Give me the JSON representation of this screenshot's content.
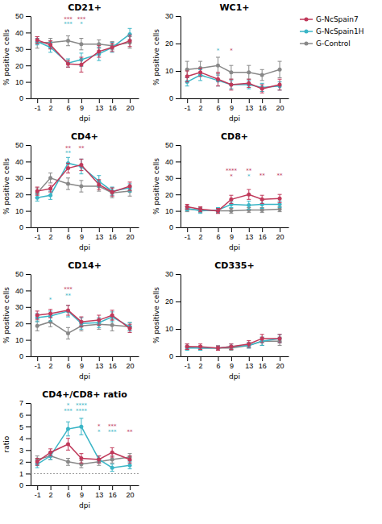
{
  "chart_data": [
    {
      "type": "line",
      "title": "CD21+",
      "x_label": "dpi",
      "y_label": "% positive cells",
      "x": [
        -1,
        2,
        6,
        9,
        13,
        16,
        20
      ],
      "xlim": [
        -2.5,
        22
      ],
      "xticks": [
        -1,
        2,
        6,
        9,
        13,
        16,
        20
      ],
      "ylim": [
        0,
        50
      ],
      "yticks": [
        0,
        10,
        20,
        30,
        40,
        50
      ],
      "series": [
        {
          "color": "#c0395a",
          "marker": "circle",
          "values": [
            35.5,
            32.5,
            21.0,
            20.5,
            28.5,
            31.0,
            35.0
          ],
          "errors": [
            2.0,
            2.5,
            2.0,
            4.5,
            3.5,
            2.5,
            3.5
          ]
        },
        {
          "color": "#3ab5c6",
          "marker": "circle",
          "values": [
            34.5,
            31.0,
            21.5,
            23.5,
            27.0,
            31.0,
            39.0
          ],
          "errors": [
            2.0,
            3.0,
            2.5,
            4.0,
            4.0,
            3.0,
            3.5
          ]
        },
        {
          "color": "#888888",
          "marker": "circle",
          "values": [
            34.0,
            34.0,
            35.0,
            33.0,
            33.0,
            32.0,
            34.0
          ],
          "errors": [
            3.5,
            2.5,
            3.0,
            3.5,
            2.5,
            2.5,
            3.5
          ]
        }
      ],
      "annotations": [
        {
          "x": 6,
          "y": 46.5,
          "text": "***",
          "color": "#c0395a"
        },
        {
          "x": 6,
          "y": 43.5,
          "text": "***",
          "color": "#3ab5c6"
        },
        {
          "x": 9,
          "y": 46.5,
          "text": "***",
          "color": "#c0395a"
        },
        {
          "x": 9,
          "y": 43.5,
          "text": "*",
          "color": "#3ab5c6"
        }
      ]
    },
    {
      "type": "line",
      "title": "WC1+",
      "x_label": "dpi",
      "y_label": "% positive cells",
      "x": [
        -1,
        2,
        6,
        9,
        13,
        16,
        20
      ],
      "xlim": [
        -2.5,
        22
      ],
      "xticks": [
        -1,
        2,
        6,
        9,
        13,
        16,
        20
      ],
      "ylim": [
        0,
        30
      ],
      "yticks": [
        0,
        10,
        20,
        30
      ],
      "legend": "right",
      "series": [
        {
          "name": "G-NcSpain7",
          "color": "#c0395a",
          "marker": "circle",
          "values": [
            8.0,
            9.5,
            7.0,
            5.0,
            5.5,
            3.5,
            5.0
          ],
          "errors": [
            2.0,
            1.5,
            2.5,
            2.0,
            1.5,
            1.5,
            2.0
          ]
        },
        {
          "name": "G-NcSpain1H",
          "color": "#3ab5c6",
          "marker": "circle",
          "values": [
            6.0,
            8.5,
            6.5,
            5.0,
            5.0,
            4.0,
            4.5
          ],
          "errors": [
            1.5,
            2.0,
            2.0,
            1.5,
            1.5,
            1.5,
            1.5
          ]
        },
        {
          "name": "G-Control",
          "color": "#888888",
          "marker": "circle",
          "values": [
            10.5,
            11.0,
            12.0,
            9.5,
            9.5,
            8.5,
            10.5
          ],
          "errors": [
            3.0,
            2.5,
            3.0,
            2.5,
            2.5,
            2.0,
            3.0
          ]
        }
      ],
      "annotations": [
        {
          "x": 6,
          "y": 16.5,
          "text": "*",
          "color": "#3ab5c6"
        },
        {
          "x": 9,
          "y": 16.5,
          "text": "*",
          "color": "#c0395a"
        }
      ]
    },
    {
      "type": "line",
      "title": "CD4+",
      "x_label": "dpi",
      "y_label": "% positive cells",
      "x": [
        -1,
        2,
        6,
        9,
        13,
        16,
        20
      ],
      "xlim": [
        -2.5,
        22
      ],
      "xticks": [
        -1,
        2,
        6,
        9,
        13,
        16,
        20
      ],
      "ylim": [
        0,
        50
      ],
      "yticks": [
        0,
        10,
        20,
        30,
        40,
        50
      ],
      "series": [
        {
          "color": "#c0395a",
          "marker": "circle",
          "values": [
            22.0,
            23.5,
            36.0,
            38.0,
            26.0,
            21.5,
            25.0
          ],
          "errors": [
            2.5,
            2.0,
            3.0,
            3.5,
            3.0,
            2.5,
            2.5
          ]
        },
        {
          "color": "#3ab5c6",
          "marker": "circle",
          "values": [
            18.0,
            19.5,
            39.0,
            37.0,
            28.0,
            22.0,
            24.0
          ],
          "errors": [
            2.0,
            2.5,
            3.5,
            4.5,
            3.5,
            2.5,
            2.5
          ]
        },
        {
          "color": "#888888",
          "marker": "circle",
          "values": [
            21.0,
            30.0,
            26.5,
            25.0,
            25.0,
            21.0,
            22.0
          ],
          "errors": [
            3.0,
            3.0,
            3.5,
            3.5,
            3.0,
            3.0,
            3.0
          ]
        }
      ],
      "annotations": [
        {
          "x": 6,
          "y": 46.5,
          "text": "**",
          "color": "#c0395a"
        },
        {
          "x": 6,
          "y": 43.5,
          "text": "**",
          "color": "#3ab5c6"
        },
        {
          "x": 9,
          "y": 46.5,
          "text": "**",
          "color": "#c0395a"
        }
      ]
    },
    {
      "type": "line",
      "title": "CD8+",
      "x_label": "dpi",
      "y_label": "% positive cells",
      "x": [
        -1,
        2,
        6,
        9,
        13,
        16,
        20
      ],
      "xlim": [
        -2.5,
        22
      ],
      "xticks": [
        -1,
        2,
        6,
        9,
        13,
        16,
        20
      ],
      "ylim": [
        0,
        50
      ],
      "yticks": [
        0,
        10,
        20,
        30,
        40,
        50
      ],
      "series": [
        {
          "color": "#c0395a",
          "marker": "circle",
          "values": [
            12.5,
            11.0,
            10.0,
            17.0,
            20.0,
            17.0,
            17.5
          ],
          "errors": [
            1.5,
            1.5,
            1.5,
            2.5,
            3.0,
            2.5,
            2.5
          ]
        },
        {
          "color": "#3ab5c6",
          "marker": "circle",
          "values": [
            11.5,
            10.0,
            10.5,
            14.0,
            13.5,
            14.0,
            14.0
          ],
          "errors": [
            1.5,
            1.5,
            1.5,
            2.0,
            2.5,
            2.5,
            2.0
          ]
        },
        {
          "color": "#888888",
          "marker": "circle",
          "values": [
            11.0,
            10.5,
            10.0,
            10.0,
            10.5,
            10.5,
            11.0
          ],
          "errors": [
            1.5,
            1.5,
            1.5,
            1.5,
            1.5,
            1.5,
            1.5
          ]
        }
      ],
      "annotations": [
        {
          "x": 9,
          "y": 33.0,
          "text": "****",
          "color": "#c0395a"
        },
        {
          "x": 9,
          "y": 29.5,
          "text": "*",
          "color": "#c0395a"
        },
        {
          "x": 13,
          "y": 33.0,
          "text": "**",
          "color": "#c0395a"
        },
        {
          "x": 13,
          "y": 29.5,
          "text": "*",
          "color": "#3ab5c6"
        },
        {
          "x": 16,
          "y": 30.0,
          "text": "**",
          "color": "#c0395a"
        },
        {
          "x": 20,
          "y": 30.0,
          "text": "**",
          "color": "#c0395a"
        }
      ]
    },
    {
      "type": "line",
      "title": "CD14+",
      "x_label": "dpi",
      "y_label": "% positive cells",
      "x": [
        -1,
        2,
        6,
        9,
        13,
        16,
        20
      ],
      "xlim": [
        -2.5,
        22
      ],
      "xticks": [
        -1,
        2,
        6,
        9,
        13,
        16,
        20
      ],
      "ylim": [
        0,
        50
      ],
      "yticks": [
        0,
        10,
        20,
        30,
        40,
        50
      ],
      "series": [
        {
          "color": "#c0395a",
          "marker": "circle",
          "values": [
            25.0,
            26.0,
            28.0,
            21.0,
            22.0,
            25.0,
            17.0
          ],
          "errors": [
            2.5,
            2.5,
            3.0,
            3.0,
            3.0,
            3.0,
            2.5
          ]
        },
        {
          "color": "#3ab5c6",
          "marker": "circle",
          "values": [
            23.5,
            24.5,
            27.5,
            20.0,
            20.5,
            24.0,
            18.0
          ],
          "errors": [
            2.5,
            3.0,
            3.5,
            3.5,
            3.0,
            3.0,
            2.5
          ]
        },
        {
          "color": "#888888",
          "marker": "circle",
          "values": [
            18.5,
            21.0,
            14.0,
            18.5,
            19.5,
            19.0,
            18.0
          ],
          "errors": [
            3.0,
            3.0,
            3.5,
            3.0,
            3.0,
            3.5,
            2.5
          ]
        }
      ],
      "annotations": [
        {
          "x": 2,
          "y": 33.0,
          "text": "*",
          "color": "#3ab5c6"
        },
        {
          "x": 6,
          "y": 39.0,
          "text": "***",
          "color": "#c0395a"
        },
        {
          "x": 6,
          "y": 35.5,
          "text": "**",
          "color": "#3ab5c6"
        }
      ]
    },
    {
      "type": "line",
      "title": "CD335+",
      "x_label": "dpi",
      "y_label": "% positive cells",
      "x": [
        -1,
        2,
        6,
        9,
        13,
        16,
        20
      ],
      "xlim": [
        -2.5,
        22
      ],
      "xticks": [
        -1,
        2,
        6,
        9,
        13,
        16,
        20
      ],
      "ylim": [
        0,
        30
      ],
      "yticks": [
        0,
        10,
        20,
        30
      ],
      "series": [
        {
          "color": "#c0395a",
          "marker": "circle",
          "values": [
            3.5,
            3.5,
            3.0,
            3.5,
            4.5,
            6.5,
            6.5
          ],
          "errors": [
            1.0,
            1.0,
            0.8,
            1.0,
            1.2,
            1.5,
            1.5
          ]
        },
        {
          "color": "#3ab5c6",
          "marker": "circle",
          "values": [
            3.0,
            3.0,
            3.0,
            3.5,
            4.0,
            5.5,
            6.5
          ],
          "errors": [
            0.8,
            0.8,
            0.8,
            1.0,
            1.0,
            1.5,
            1.5
          ]
        },
        {
          "color": "#888888",
          "marker": "circle",
          "values": [
            3.5,
            3.0,
            3.0,
            3.0,
            4.0,
            5.5,
            5.5
          ],
          "errors": [
            1.0,
            0.8,
            0.8,
            0.8,
            1.0,
            1.5,
            1.5
          ]
        }
      ],
      "annotations": []
    },
    {
      "type": "line",
      "title": "CD4+/CD8+ ratio",
      "x_label": "dpi",
      "y_label": "ratio",
      "x": [
        -1,
        2,
        6,
        9,
        13,
        16,
        20
      ],
      "xlim": [
        -2.5,
        22
      ],
      "xticks": [
        -1,
        2,
        6,
        9,
        13,
        16,
        20
      ],
      "ylim": [
        0,
        7
      ],
      "yticks": [
        0,
        1,
        2,
        3,
        4,
        5,
        6,
        7
      ],
      "reference_line": 1.0,
      "series": [
        {
          "color": "#c0395a",
          "marker": "circle",
          "values": [
            2.0,
            2.8,
            3.5,
            2.3,
            2.2,
            2.8,
            2.2
          ],
          "errors": [
            0.3,
            0.3,
            0.5,
            0.4,
            0.3,
            0.4,
            0.3
          ]
        },
        {
          "color": "#3ab5c6",
          "marker": "circle",
          "values": [
            1.8,
            2.5,
            4.8,
            5.0,
            2.2,
            1.5,
            1.7
          ],
          "errors": [
            0.3,
            0.3,
            0.6,
            0.7,
            0.3,
            0.3,
            0.3
          ]
        },
        {
          "color": "#888888",
          "marker": "circle",
          "values": [
            2.2,
            2.5,
            2.0,
            1.8,
            2.0,
            2.2,
            2.4
          ],
          "errors": [
            0.3,
            0.3,
            0.3,
            0.3,
            0.3,
            0.3,
            0.3
          ]
        }
      ],
      "annotations": [
        {
          "x": 6,
          "y": 6.6,
          "text": "*",
          "color": "#3ab5c6"
        },
        {
          "x": 6,
          "y": 6.1,
          "text": "***",
          "color": "#3ab5c6"
        },
        {
          "x": 9,
          "y": 6.6,
          "text": "****",
          "color": "#3ab5c6"
        },
        {
          "x": 9,
          "y": 6.1,
          "text": "****",
          "color": "#3ab5c6"
        },
        {
          "x": 13,
          "y": 4.8,
          "text": "*",
          "color": "#c0395a"
        },
        {
          "x": 13,
          "y": 4.3,
          "text": "*",
          "color": "#3ab5c6"
        },
        {
          "x": 16,
          "y": 4.8,
          "text": "***",
          "color": "#c0395a"
        },
        {
          "x": 16,
          "y": 4.3,
          "text": "***",
          "color": "#3ab5c6"
        },
        {
          "x": 20,
          "y": 4.3,
          "text": "**",
          "color": "#c0395a"
        }
      ]
    }
  ]
}
